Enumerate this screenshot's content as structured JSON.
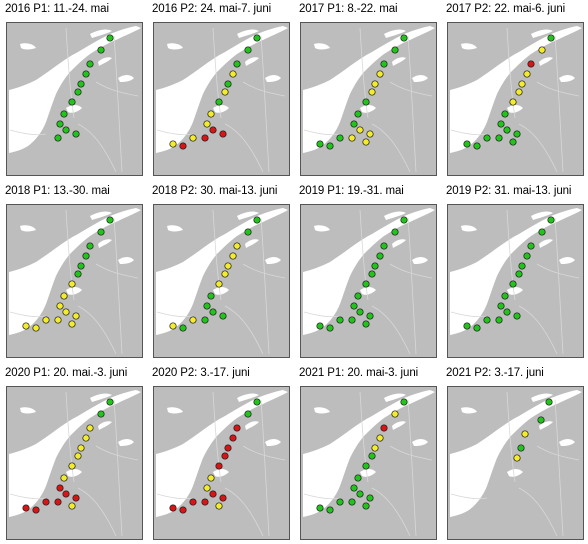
{
  "figure": {
    "colors": {
      "land": "#bdbdbd",
      "sea": "#ffffff",
      "frame": "#555555",
      "green": "#22c41c",
      "yellow": "#f3ec2c",
      "red": "#d61616"
    },
    "icon": "map-panel",
    "panels": [
      {
        "title": "2016 P1: 11.-24. mai",
        "stations": [
          "green",
          "green",
          "green",
          "green",
          "green",
          "green",
          "green",
          "green",
          "green",
          "green",
          "green",
          "green"
        ]
      },
      {
        "title": "2016 P2: 24. mai-7. juni",
        "stations": [
          "green",
          "green",
          "green",
          "yellow",
          "green",
          "yellow",
          "green",
          "yellow",
          "yellow",
          "red",
          "red",
          "red",
          "yellow",
          "red",
          "yellow"
        ]
      },
      {
        "title": "2017 P1: 8.-22. mai",
        "stations": [
          "green",
          "green",
          "green",
          "yellow",
          "yellow",
          "yellow",
          "green",
          "green",
          "green",
          "yellow",
          "yellow",
          "yellow",
          "green",
          "green",
          "green",
          "yellow"
        ]
      },
      {
        "title": "2017 P2: 22. mai-6. juni",
        "stations": [
          "green",
          "yellow",
          "red",
          "yellow",
          "yellow",
          "yellow",
          "yellow",
          "green",
          "green",
          "green",
          "green",
          "green",
          "green",
          "green",
          "green",
          "green"
        ]
      },
      {
        "title": "2018 P1: 13.-30. mai",
        "stations": [
          "green",
          "green",
          "green",
          "green",
          "green",
          "green",
          "yellow",
          "yellow",
          "yellow",
          "yellow",
          "yellow",
          "yellow",
          "yellow",
          "yellow",
          "yellow",
          "yellow"
        ]
      },
      {
        "title": "2018 P2: 30. mai-13. juni",
        "stations": [
          "green",
          "green",
          "yellow",
          "yellow",
          "yellow",
          "yellow",
          "yellow",
          "green",
          "green",
          "green",
          "green",
          "green",
          "yellow",
          "green",
          "yellow"
        ]
      },
      {
        "title": "2019 P1: 19.-31. mai",
        "stations": [
          "green",
          "green",
          "green",
          "green",
          "green",
          "green",
          "green",
          "green",
          "green",
          "green",
          "green",
          "green",
          "green",
          "green",
          "green",
          "green"
        ]
      },
      {
        "title": "2019 P2: 31. mai-13. juni",
        "stations": [
          "green",
          "green",
          "green",
          "green",
          "green",
          "green",
          "green",
          "green",
          "green",
          "green",
          "green",
          "green",
          "green",
          "green",
          "green"
        ]
      },
      {
        "title": "2020 P1: 20. mai.-3. juni",
        "stations": [
          "green",
          "green",
          "yellow",
          "yellow",
          "yellow",
          "yellow",
          "yellow",
          "yellow",
          "red",
          "red",
          "red",
          "red",
          "red",
          "red",
          "red",
          "yellow"
        ]
      },
      {
        "title": "2020 P2: 3.-17. juni",
        "stations": [
          "green",
          "green",
          "red",
          "red",
          "red",
          "red",
          "red",
          "yellow",
          "yellow",
          "red",
          "red",
          "red",
          "red",
          "red",
          "red",
          "yellow"
        ]
      },
      {
        "title": "2021 P1: 20. mai-3. juni",
        "stations": [
          "green",
          "yellow",
          "red",
          "yellow",
          "yellow",
          "green",
          "green",
          "green",
          "green",
          "green",
          "green",
          "green",
          "green",
          "green",
          "green",
          "green"
        ]
      },
      {
        "title": "2021 P2: 3.-17. juni",
        "stations": [
          "green",
          "green",
          "yellow",
          "green",
          "yellow"
        ]
      }
    ]
  }
}
